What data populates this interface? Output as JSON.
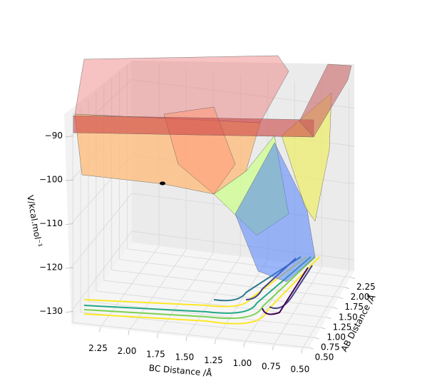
{
  "chart_data": {
    "type": "surface3d",
    "xlabel": "BC Distance /Å",
    "ylabel": "AB Distance /Å",
    "zlabel": "V/kcal.mol⁻¹",
    "xlim": [
      2.5,
      0.45
    ],
    "ylim": [
      0.45,
      2.4
    ],
    "zlim": [
      -133,
      -85
    ],
    "xticks": [
      2.25,
      {
        "value": 2,
        "label": "2.00"
      },
      1.75,
      {
        "value": 1.5,
        "label": "1.50"
      },
      1.25,
      {
        "value": 1,
        "label": "1.00"
      },
      0.75,
      {
        "value": 0.5,
        "label": "0.50"
      }
    ],
    "yticks": [
      {
        "value": 0.5,
        "label": "0.50"
      },
      0.75,
      {
        "value": 1,
        "label": "1.00"
      },
      1.25,
      {
        "value": 1.5,
        "label": "1.50"
      },
      1.75,
      {
        "value": 2,
        "label": "2.00"
      },
      2.25
    ],
    "zticks": [
      {
        "value": -90,
        "label": "−90"
      },
      {
        "value": -100,
        "label": "−100"
      },
      {
        "value": -110,
        "label": "−110"
      },
      {
        "value": -120,
        "label": "−120"
      },
      {
        "value": -130,
        "label": "−130"
      }
    ],
    "grid": true
  }
}
